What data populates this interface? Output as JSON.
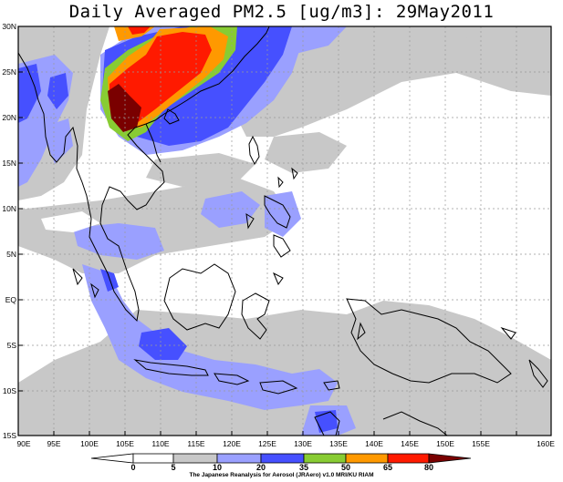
{
  "title": "Daily Averaged PM2.5 [ug/m3]: 29May2011",
  "lat_labels": [
    "30N",
    "25N",
    "20N",
    "15N",
    "10N",
    "5N",
    "EQ",
    "5S",
    "10S",
    "15S"
  ],
  "lon_labels": [
    "90E",
    "95E",
    "100E",
    "105E",
    "110E",
    "115E",
    "120E",
    "125E",
    "130E",
    "135E",
    "140E",
    "145E",
    "150E",
    "155E",
    "160E"
  ],
  "colorbar": {
    "labels": [
      "0",
      "5",
      "10",
      "20",
      "35",
      "50",
      "65",
      "80"
    ],
    "colors": [
      "#ffffff",
      "#ffffff",
      "#c8c8c8",
      "#9aa0ff",
      "#4650ff",
      "#88cc33",
      "#ff9900",
      "#ff1a00",
      "#7a0000"
    ]
  },
  "credit": "The Japanese Reanalysis for Aerosol (JRAero) v1.0 MRI/KU RIAM"
}
